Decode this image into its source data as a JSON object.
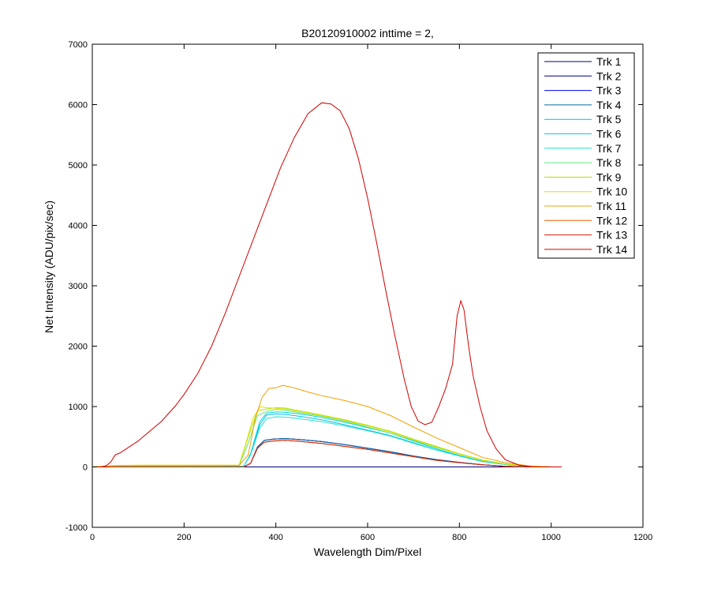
{
  "chart_data": {
    "type": "line",
    "title": "B20120910002 inttime = 2,",
    "xlabel": "Wavelength Dim/Pixel",
    "ylabel": "Net Intensity (ADU/pix/sec)",
    "xlim": [
      0,
      1200
    ],
    "ylim": [
      -1000,
      7000
    ],
    "xticks": [
      "0",
      "200",
      "400",
      "600",
      "800",
      "1000",
      "1200"
    ],
    "yticks": [
      "-1000",
      "0",
      "1000",
      "2000",
      "3000",
      "4000",
      "5000",
      "6000",
      "7000"
    ],
    "grid": false,
    "legend_position": "top-right",
    "series": [
      {
        "name": "Trk 1",
        "color": "#000080",
        "points": [
          [
            0,
            0
          ],
          [
            1023,
            0
          ]
        ]
      },
      {
        "name": "Trk 2",
        "color": "#00008F",
        "points": [
          [
            0,
            0
          ],
          [
            330,
            0
          ],
          [
            345,
            60
          ],
          [
            360,
            330
          ],
          [
            375,
            440
          ],
          [
            395,
            460
          ],
          [
            420,
            470
          ],
          [
            450,
            455
          ],
          [
            500,
            420
          ],
          [
            550,
            370
          ],
          [
            600,
            310
          ],
          [
            650,
            250
          ],
          [
            700,
            180
          ],
          [
            750,
            120
          ],
          [
            800,
            75
          ],
          [
            850,
            35
          ],
          [
            900,
            10
          ],
          [
            950,
            0
          ],
          [
            1023,
            0
          ]
        ]
      },
      {
        "name": "Trk 3",
        "color": "#0000FF",
        "points": [
          [
            0,
            0
          ],
          [
            330,
            0
          ],
          [
            345,
            60
          ],
          [
            360,
            330
          ],
          [
            375,
            440
          ],
          [
            395,
            460
          ],
          [
            420,
            470
          ],
          [
            450,
            455
          ],
          [
            500,
            420
          ],
          [
            550,
            370
          ],
          [
            600,
            310
          ],
          [
            650,
            250
          ],
          [
            700,
            180
          ],
          [
            750,
            120
          ],
          [
            800,
            75
          ],
          [
            850,
            35
          ],
          [
            900,
            10
          ],
          [
            950,
            0
          ],
          [
            1023,
            0
          ]
        ]
      },
      {
        "name": "Trk 4",
        "color": "#006BA0",
        "points": [
          [
            0,
            0
          ],
          [
            330,
            0
          ],
          [
            345,
            60
          ],
          [
            360,
            330
          ],
          [
            375,
            440
          ],
          [
            395,
            460
          ],
          [
            420,
            470
          ],
          [
            450,
            455
          ],
          [
            500,
            420
          ],
          [
            550,
            370
          ],
          [
            600,
            310
          ],
          [
            650,
            250
          ],
          [
            700,
            180
          ],
          [
            750,
            120
          ],
          [
            800,
            75
          ],
          [
            850,
            35
          ],
          [
            900,
            10
          ],
          [
            950,
            0
          ],
          [
            1023,
            0
          ]
        ]
      },
      {
        "name": "Trk 5",
        "color": "#00BFD8",
        "points": [
          [
            0,
            0
          ],
          [
            50,
            10
          ],
          [
            330,
            15
          ],
          [
            345,
            200
          ],
          [
            365,
            700
          ],
          [
            380,
            860
          ],
          [
            400,
            880
          ],
          [
            420,
            870
          ],
          [
            450,
            840
          ],
          [
            500,
            780
          ],
          [
            550,
            700
          ],
          [
            600,
            610
          ],
          [
            650,
            520
          ],
          [
            700,
            400
          ],
          [
            750,
            280
          ],
          [
            800,
            180
          ],
          [
            850,
            90
          ],
          [
            900,
            40
          ],
          [
            950,
            10
          ],
          [
            1000,
            0
          ],
          [
            1023,
            0
          ]
        ]
      },
      {
        "name": "Trk 6",
        "color": "#00D0E8",
        "points": [
          [
            0,
            0
          ],
          [
            50,
            10
          ],
          [
            330,
            15
          ],
          [
            345,
            220
          ],
          [
            365,
            750
          ],
          [
            380,
            890
          ],
          [
            400,
            910
          ],
          [
            420,
            905
          ],
          [
            450,
            880
          ],
          [
            500,
            820
          ],
          [
            550,
            740
          ],
          [
            600,
            650
          ],
          [
            650,
            560
          ],
          [
            700,
            430
          ],
          [
            750,
            300
          ],
          [
            800,
            190
          ],
          [
            850,
            95
          ],
          [
            900,
            40
          ],
          [
            950,
            10
          ],
          [
            1000,
            0
          ],
          [
            1023,
            0
          ]
        ]
      },
      {
        "name": "Trk 7",
        "color": "#20E0D0",
        "points": [
          [
            0,
            0
          ],
          [
            50,
            10
          ],
          [
            330,
            15
          ],
          [
            345,
            200
          ],
          [
            365,
            650
          ],
          [
            380,
            800
          ],
          [
            400,
            830
          ],
          [
            420,
            825
          ],
          [
            450,
            800
          ],
          [
            500,
            750
          ],
          [
            550,
            680
          ],
          [
            600,
            600
          ],
          [
            650,
            510
          ],
          [
            700,
            390
          ],
          [
            750,
            280
          ],
          [
            800,
            180
          ],
          [
            850,
            90
          ],
          [
            900,
            40
          ],
          [
            950,
            10
          ],
          [
            1000,
            0
          ],
          [
            1023,
            0
          ]
        ]
      },
      {
        "name": "Trk 8",
        "color": "#60E880",
        "points": [
          [
            0,
            0
          ],
          [
            50,
            15
          ],
          [
            320,
            20
          ],
          [
            340,
            400
          ],
          [
            360,
            850
          ],
          [
            380,
            920
          ],
          [
            400,
            950
          ],
          [
            420,
            940
          ],
          [
            450,
            900
          ],
          [
            500,
            840
          ],
          [
            550,
            760
          ],
          [
            600,
            660
          ],
          [
            650,
            560
          ],
          [
            700,
            440
          ],
          [
            750,
            320
          ],
          [
            800,
            210
          ],
          [
            850,
            110
          ],
          [
            900,
            50
          ],
          [
            950,
            15
          ],
          [
            1000,
            0
          ],
          [
            1023,
            0
          ]
        ]
      },
      {
        "name": "Trk 9",
        "color": "#B0E000",
        "points": [
          [
            0,
            0
          ],
          [
            50,
            20
          ],
          [
            320,
            25
          ],
          [
            340,
            500
          ],
          [
            360,
            930
          ],
          [
            380,
            960
          ],
          [
            400,
            980
          ],
          [
            420,
            975
          ],
          [
            450,
            930
          ],
          [
            500,
            860
          ],
          [
            550,
            780
          ],
          [
            600,
            690
          ],
          [
            650,
            590
          ],
          [
            700,
            460
          ],
          [
            750,
            340
          ],
          [
            800,
            220
          ],
          [
            850,
            115
          ],
          [
            900,
            50
          ],
          [
            950,
            15
          ],
          [
            1000,
            0
          ],
          [
            1023,
            0
          ]
        ]
      },
      {
        "name": "Trk 10",
        "color": "#E0E000",
        "points": [
          [
            0,
            0
          ],
          [
            50,
            25
          ],
          [
            100,
            30
          ],
          [
            320,
            30
          ],
          [
            335,
            400
          ],
          [
            350,
            800
          ],
          [
            365,
            1000
          ],
          [
            380,
            980
          ],
          [
            400,
            970
          ],
          [
            420,
            960
          ],
          [
            450,
            920
          ],
          [
            500,
            850
          ],
          [
            550,
            770
          ],
          [
            600,
            680
          ],
          [
            650,
            580
          ],
          [
            700,
            450
          ],
          [
            750,
            330
          ],
          [
            800,
            210
          ],
          [
            850,
            110
          ],
          [
            900,
            50
          ],
          [
            950,
            15
          ],
          [
            1000,
            0
          ],
          [
            1023,
            0
          ]
        ]
      },
      {
        "name": "Trk 11",
        "color": "#F0A000",
        "points": [
          [
            0,
            0
          ],
          [
            50,
            20
          ],
          [
            320,
            25
          ],
          [
            340,
            200
          ],
          [
            355,
            800
          ],
          [
            370,
            1150
          ],
          [
            385,
            1300
          ],
          [
            400,
            1310
          ],
          [
            415,
            1350
          ],
          [
            440,
            1310
          ],
          [
            470,
            1240
          ],
          [
            500,
            1180
          ],
          [
            550,
            1100
          ],
          [
            600,
            1000
          ],
          [
            650,
            850
          ],
          [
            700,
            660
          ],
          [
            750,
            480
          ],
          [
            800,
            320
          ],
          [
            850,
            160
          ],
          [
            900,
            70
          ],
          [
            950,
            20
          ],
          [
            1000,
            0
          ],
          [
            1023,
            0
          ]
        ]
      },
      {
        "name": "Trk 12",
        "color": "#F06000",
        "points": [
          [
            0,
            0
          ],
          [
            330,
            0
          ],
          [
            345,
            60
          ],
          [
            360,
            310
          ],
          [
            375,
            410
          ],
          [
            395,
            430
          ],
          [
            420,
            440
          ],
          [
            450,
            425
          ],
          [
            500,
            390
          ],
          [
            550,
            340
          ],
          [
            600,
            290
          ],
          [
            650,
            230
          ],
          [
            700,
            170
          ],
          [
            750,
            110
          ],
          [
            800,
            70
          ],
          [
            850,
            35
          ],
          [
            900,
            10
          ],
          [
            950,
            0
          ],
          [
            1023,
            0
          ]
        ]
      },
      {
        "name": "Trk 13",
        "color": "#D02000",
        "points": [
          [
            0,
            0
          ],
          [
            330,
            0
          ],
          [
            345,
            60
          ],
          [
            360,
            310
          ],
          [
            375,
            410
          ],
          [
            395,
            430
          ],
          [
            420,
            440
          ],
          [
            450,
            425
          ],
          [
            500,
            390
          ],
          [
            550,
            340
          ],
          [
            600,
            290
          ],
          [
            650,
            230
          ],
          [
            700,
            170
          ],
          [
            750,
            110
          ],
          [
            800,
            70
          ],
          [
            850,
            35
          ],
          [
            900,
            10
          ],
          [
            950,
            0
          ],
          [
            1023,
            0
          ]
        ]
      },
      {
        "name": "Trk 14",
        "color": "#D00000",
        "points": [
          [
            0,
            0
          ],
          [
            20,
            0
          ],
          [
            30,
            20
          ],
          [
            40,
            80
          ],
          [
            50,
            200
          ],
          [
            60,
            230
          ],
          [
            80,
            330
          ],
          [
            100,
            430
          ],
          [
            120,
            560
          ],
          [
            150,
            750
          ],
          [
            180,
            1000
          ],
          [
            200,
            1200
          ],
          [
            230,
            1550
          ],
          [
            260,
            2000
          ],
          [
            290,
            2550
          ],
          [
            320,
            3150
          ],
          [
            350,
            3750
          ],
          [
            380,
            4350
          ],
          [
            410,
            4950
          ],
          [
            440,
            5450
          ],
          [
            470,
            5850
          ],
          [
            500,
            6030
          ],
          [
            520,
            6010
          ],
          [
            540,
            5900
          ],
          [
            560,
            5600
          ],
          [
            580,
            5100
          ],
          [
            600,
            4450
          ],
          [
            620,
            3700
          ],
          [
            640,
            2900
          ],
          [
            660,
            2150
          ],
          [
            680,
            1450
          ],
          [
            695,
            1000
          ],
          [
            710,
            760
          ],
          [
            725,
            700
          ],
          [
            740,
            740
          ],
          [
            755,
            1000
          ],
          [
            770,
            1300
          ],
          [
            785,
            1700
          ],
          [
            795,
            2500
          ],
          [
            803,
            2750
          ],
          [
            810,
            2600
          ],
          [
            820,
            2000
          ],
          [
            830,
            1500
          ],
          [
            845,
            1000
          ],
          [
            860,
            600
          ],
          [
            880,
            300
          ],
          [
            900,
            120
          ],
          [
            930,
            30
          ],
          [
            960,
            0
          ],
          [
            1023,
            0
          ]
        ]
      }
    ]
  }
}
